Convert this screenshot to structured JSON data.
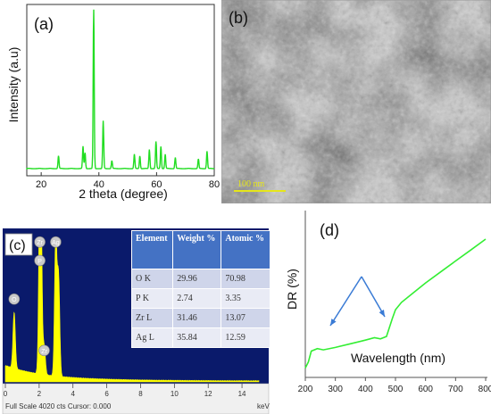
{
  "panel_a": {
    "label": "(a)",
    "ylabel": "Intensity (a.u)",
    "xlabel": "2 theta (degree)",
    "x_ticks": [
      "20",
      "40",
      "60",
      "80"
    ],
    "line_color": "#22dd22"
  },
  "panel_b": {
    "label": "(b)",
    "scalebar": "100 nm",
    "scalebar_color": "#e6e61a"
  },
  "panel_c": {
    "label": "(c)",
    "peak_labels": [
      "O",
      "Zr",
      "P",
      "Ag",
      "Zr"
    ],
    "x_ticks": [
      "0",
      "2",
      "4",
      "6",
      "8",
      "10",
      "12",
      "14"
    ],
    "footer_left": "Full Scale 4020 cts Cursor: 0.000",
    "footer_right": "keV",
    "spectrum_color": "#ffff00",
    "background_color": "#0a1a6b",
    "table": {
      "headers": [
        "Element",
        "Weight %",
        "Atomic %"
      ],
      "rows": [
        [
          "O K",
          "29.96",
          "70.98"
        ],
        [
          "P K",
          "2.74",
          "3.35"
        ],
        [
          "Zr L",
          "31.46",
          "13.07"
        ],
        [
          "Ag L",
          "35.84",
          "12.59"
        ]
      ]
    }
  },
  "panel_d": {
    "label": "(d)",
    "ylabel": "DR (%)",
    "xlabel": "Wavelength (nm)",
    "x_ticks": [
      "200",
      "300",
      "400",
      "500",
      "600",
      "700",
      "800"
    ],
    "line_color": "#33ee33",
    "arrow_color": "#3a7bd5"
  },
  "chart_data": [
    {
      "type": "line",
      "title": "(a)",
      "xlabel": "2 theta (degree)",
      "ylabel": "Intensity (a.u)",
      "xlim": [
        15,
        80
      ],
      "peaks": {
        "x": [
          26.0,
          34.5,
          35.2,
          38.2,
          41.5,
          44.5,
          52.3,
          54.2,
          57.5,
          59.8,
          61.5,
          63.0,
          66.5,
          74.5,
          77.5
        ],
        "y": [
          8,
          14,
          10,
          100,
          30,
          5,
          9,
          8,
          12,
          17,
          14,
          9,
          7,
          6,
          11
        ]
      }
    },
    {
      "type": "line",
      "title": "(c)",
      "xlabel": "keV",
      "xlim": [
        0,
        15
      ],
      "peaks": {
        "x": [
          0.52,
          2.04,
          2.1,
          2.98,
          3.15,
          2.3
        ],
        "y": [
          40,
          100,
          95,
          100,
          70,
          20
        ]
      }
    },
    {
      "type": "line",
      "title": "(d)",
      "xlabel": "Wavelength (nm)",
      "ylabel": "DR (%)",
      "xlim": [
        200,
        800
      ],
      "x": [
        200,
        210,
        220,
        240,
        260,
        300,
        350,
        400,
        430,
        450,
        470,
        490,
        500,
        520,
        560,
        600,
        650,
        700,
        750,
        800
      ],
      "y": [
        4,
        9,
        18,
        20,
        19,
        21,
        24,
        27,
        29,
        28,
        30,
        45,
        52,
        58,
        66,
        74,
        83,
        92,
        101,
        110
      ]
    }
  ]
}
